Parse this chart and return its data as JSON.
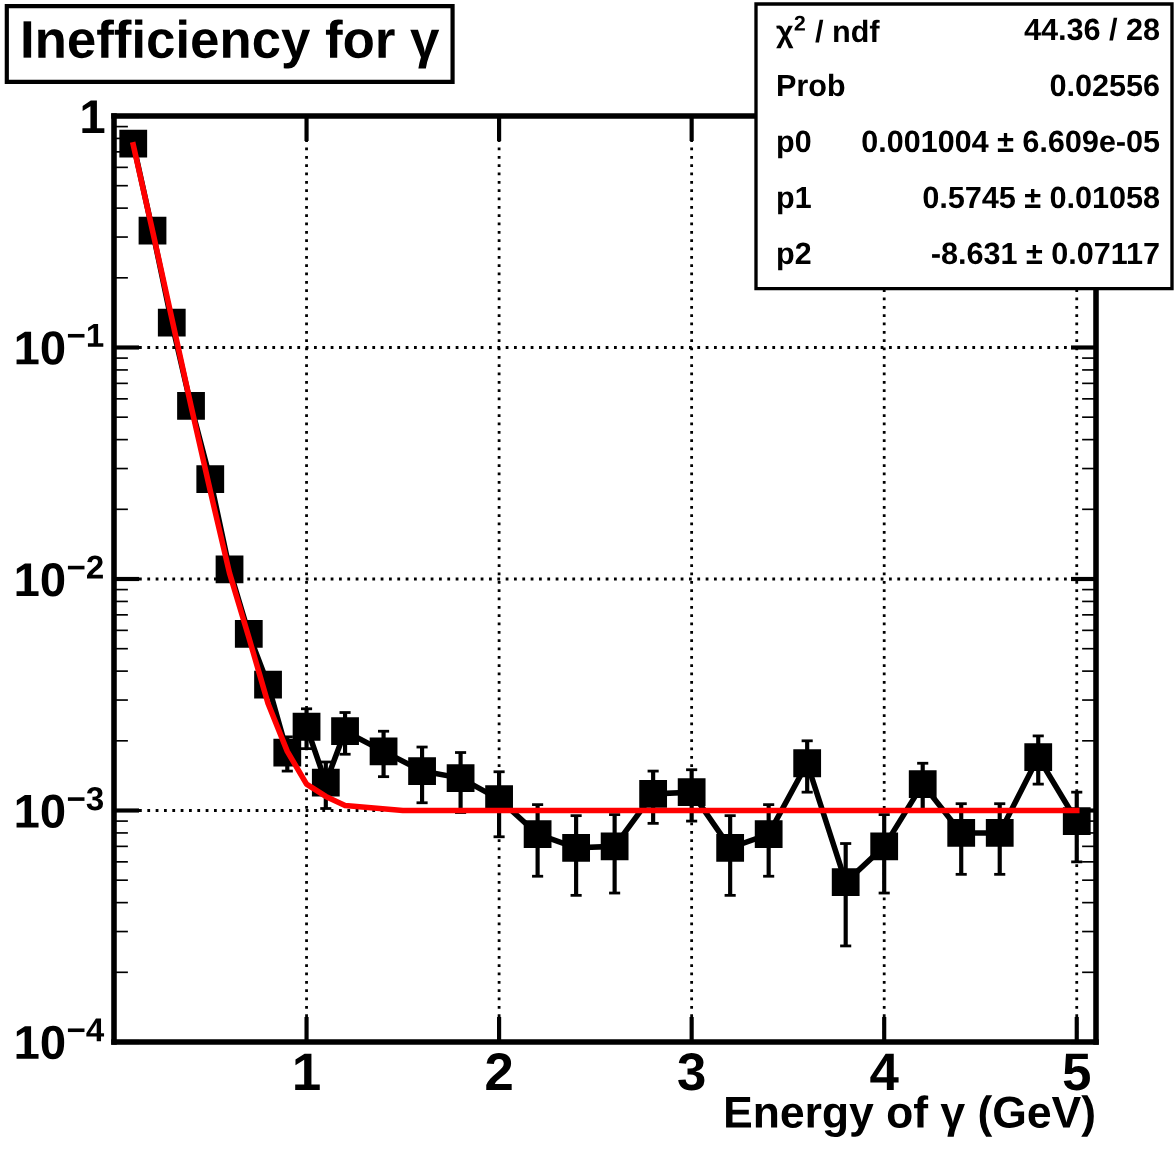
{
  "chart_data": {
    "type": "line",
    "title": "Inefficiency for γ",
    "xlabel": "Energy of γ (GeV)",
    "series": [
      {
        "color": "#000000",
        "marker": "square",
        "x": [
          0.1,
          0.2,
          0.3,
          0.4,
          0.5,
          0.6,
          0.7,
          0.8,
          0.9,
          1.0,
          1.1,
          1.2,
          1.4,
          1.6,
          1.8,
          2.0,
          2.2,
          2.4,
          2.6,
          2.8,
          3.0,
          3.2,
          3.4,
          3.6,
          3.8,
          4.0,
          4.2,
          4.4,
          4.6,
          4.8,
          5.0
        ],
        "values": [
          0.76,
          0.32,
          0.128,
          0.056,
          0.027,
          0.011,
          0.0058,
          0.0035,
          0.00178,
          0.0023,
          0.00132,
          0.0022,
          0.0018,
          0.00148,
          0.00138,
          0.00112,
          0.00079,
          0.00069,
          0.0007,
          0.00118,
          0.0012,
          0.00069,
          0.00079,
          0.0016,
          0.00049,
          0.0007,
          0.0013,
          0.0008,
          0.0008,
          0.0017,
          0.0009
        ],
        "errors": [
          null,
          null,
          null,
          null,
          null,
          null,
          0.0004,
          0.0004,
          0.0003,
          0.00045,
          0.0003,
          0.00045,
          0.0004,
          0.0004,
          0.0004,
          0.00035,
          0.00027,
          0.00026,
          0.00026,
          0.0003,
          0.0003,
          0.00026,
          0.00027,
          0.0004,
          0.00023,
          0.00026,
          0.0003,
          0.00027,
          0.00027,
          0.0004,
          0.0003
        ]
      },
      {
        "color": "#ff0000",
        "marker": "none",
        "x": [
          0.1,
          0.2,
          0.3,
          0.4,
          0.5,
          0.6,
          0.7,
          0.8,
          0.9,
          1.0,
          1.1,
          1.2,
          1.5,
          5.0
        ],
        "values": [
          0.75,
          0.32,
          0.134,
          0.056,
          0.024,
          0.0106,
          0.0056,
          0.0029,
          0.0018,
          0.0013,
          0.00115,
          0.00105,
          0.001,
          0.001
        ]
      }
    ],
    "log": "y",
    "xlim": [
      0,
      5.1
    ],
    "xticks": [
      1,
      2,
      3,
      4,
      5
    ],
    "ylim": [
      0.0001,
      1
    ],
    "yticks": [
      {
        "value": 0.0001,
        "label": "10$^{−4}$"
      },
      {
        "value": 0.001,
        "label": "10$^{−3}$"
      },
      {
        "value": 0.01,
        "label": "10$^{−2}$"
      },
      {
        "value": 0.1,
        "label": "10$^{−1}$"
      },
      {
        "value": 1,
        "label": "1"
      }
    ],
    "grid": true,
    "annotations": [
      "χ$^{2}$ / ndf",
      "44.36 / 28",
      "Prob",
      "0.02556",
      "p0",
      "0.001004 ± 6.609e-05",
      "p1",
      "0.5745 ± 0.01058",
      "p2",
      "-8.631 ± 0.07117"
    ]
  }
}
